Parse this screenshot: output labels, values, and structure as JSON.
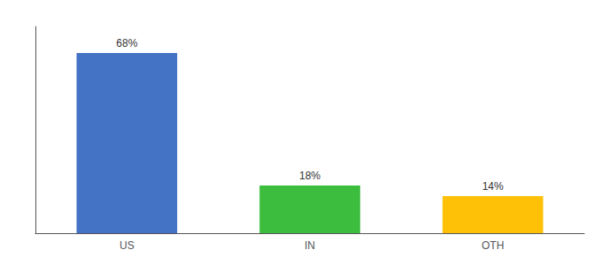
{
  "chart_data": {
    "type": "bar",
    "categories": [
      "US",
      "IN",
      "OTH"
    ],
    "values": [
      68,
      18,
      14
    ],
    "value_labels": [
      "68%",
      "18%",
      "14%"
    ],
    "colors": [
      "#4472C4",
      "#3DBD3D",
      "#FFC107"
    ],
    "ylim": [
      0,
      78
    ],
    "data_labels": true,
    "tick_labels": "x",
    "grid": false
  }
}
